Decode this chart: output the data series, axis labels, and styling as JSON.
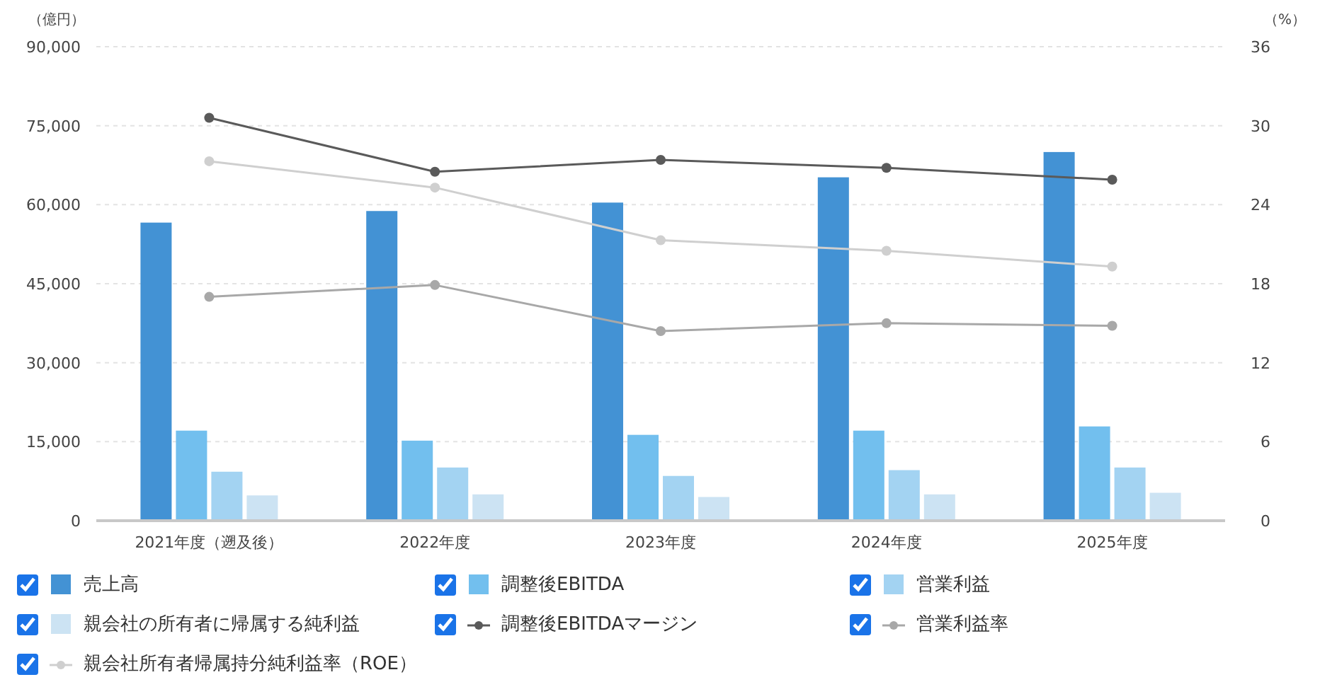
{
  "chart_data": {
    "type": "bar",
    "categories": [
      "2021年度（遡及後）",
      "2022年度",
      "2023年度",
      "2024年度",
      "2025年度"
    ],
    "ylabel": "（億円）",
    "y2label": "（%）",
    "ylim": [
      0,
      90000
    ],
    "yticks": [
      0,
      {
        "value": 15000,
        "label": "15,000"
      },
      {
        "value": 30000,
        "label": "30,000"
      },
      {
        "value": 45000,
        "label": "45,000"
      },
      {
        "value": 60000,
        "label": "60,000"
      },
      {
        "value": 75000,
        "label": "75,000"
      },
      {
        "value": 90000,
        "label": "90,000"
      }
    ],
    "y2lim": [
      0,
      36
    ],
    "y2ticks": [
      0,
      6,
      12,
      18,
      24,
      30,
      36
    ],
    "grid": "y",
    "legend": "bottom",
    "marker": "circle",
    "series": [
      {
        "name": "売上高",
        "color": "#4392d4",
        "values": [
          56600,
          58800,
          60400,
          65200,
          70000
        ]
      },
      {
        "name": "調整後EBITDA",
        "color": "#72bfee",
        "values": [
          17100,
          15200,
          16300,
          17100,
          17900
        ]
      },
      {
        "name": "営業利益",
        "color": "#a3d3f2",
        "values": [
          9300,
          10100,
          8500,
          9600,
          10100
        ]
      },
      {
        "name": "親会社の所有者に帰属する純利益",
        "color": "#cce3f3",
        "values": [
          4800,
          5000,
          4500,
          5000,
          5300
        ]
      },
      {
        "name": "調整後EBITDAマージン",
        "type": "line",
        "axis": "y2",
        "color": "#5a5a5a",
        "values": [
          30.6,
          26.5,
          27.4,
          26.8,
          25.9
        ]
      },
      {
        "name": "営業利益率",
        "type": "line",
        "axis": "y2",
        "color": "#a8a8a8",
        "values": [
          17.0,
          17.9,
          14.4,
          15.0,
          14.8
        ]
      },
      {
        "name": "親会社所有者帰属持分純利益率（ROE）",
        "type": "line",
        "axis": "y2",
        "color": "#cfcfcf",
        "values": [
          27.3,
          25.3,
          21.3,
          20.5,
          19.3
        ]
      }
    ]
  }
}
